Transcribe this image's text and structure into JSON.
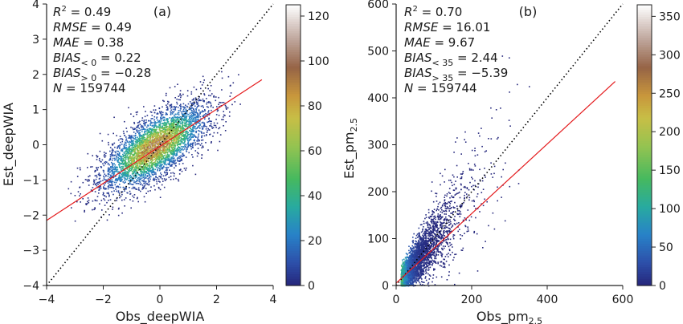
{
  "chart_data": [
    {
      "type": "scatter",
      "panel_label": "(a)",
      "xlabel": "Obs_deepWIA",
      "ylabel": "Est_deepWIA",
      "xlim": [
        -4,
        4
      ],
      "ylim": [
        -4,
        4
      ],
      "xticks": [
        -4,
        -2,
        0,
        2,
        4
      ],
      "yticks": [
        -4,
        -3,
        -2,
        -1,
        0,
        1,
        2,
        3,
        4
      ],
      "stats": {
        "r2": "0.49",
        "rmse": "0.49",
        "mae": "0.38",
        "bias_below": "0.22",
        "bias_below_sub": "< 0",
        "bias_above": "−0.28",
        "bias_above_sub": "> 0",
        "n": "159744"
      },
      "identity_line": {
        "from": [
          -4,
          -4
        ],
        "to": [
          4,
          4
        ],
        "style": "dotted",
        "color": "#000000"
      },
      "fit_line": {
        "from": [
          -4,
          -2.15
        ],
        "to": [
          3.6,
          1.85
        ],
        "color": "#e41a1c"
      },
      "density": {
        "center": [
          -0.2,
          -0.05
        ],
        "sx": 0.95,
        "sy": 0.62,
        "corr": 0.7,
        "count_displayed": 4200
      },
      "colorbar": {
        "ticks": [
          0,
          20,
          40,
          60,
          80,
          100,
          120
        ],
        "range": [
          0,
          125
        ],
        "colormap": "gist_earth-like"
      }
    },
    {
      "type": "scatter",
      "panel_label": "(b)",
      "xlabel": "Obs_pm",
      "xlabel_sub": "2.5",
      "ylabel": "Est_pm",
      "ylabel_sub": "2.5",
      "xlim": [
        0,
        600
      ],
      "ylim": [
        0,
        600
      ],
      "xticks": [
        0,
        200,
        400,
        600
      ],
      "yticks": [
        0,
        100,
        200,
        300,
        400,
        500,
        600
      ],
      "stats": {
        "r2": "0.70",
        "rmse": "16.01",
        "mae": "9.67",
        "bias_below": "2.44",
        "bias_below_sub": "< 35",
        "bias_above": "−5.39",
        "bias_above_sub": "> 35",
        "n": "159744"
      },
      "identity_line": {
        "from": [
          0,
          0
        ],
        "to": [
          600,
          600
        ],
        "style": "dotted",
        "color": "#000000"
      },
      "fit_line": {
        "from": [
          0,
          5
        ],
        "to": [
          580,
          435
        ],
        "color": "#e41a1c"
      },
      "density": {
        "center": [
          40,
          42
        ],
        "scale": 45,
        "count_displayed": 3800
      },
      "colorbar": {
        "ticks": [
          0,
          50,
          100,
          150,
          200,
          250,
          300,
          350
        ],
        "range": [
          0,
          365
        ],
        "colormap": "gist_earth-like"
      }
    }
  ]
}
